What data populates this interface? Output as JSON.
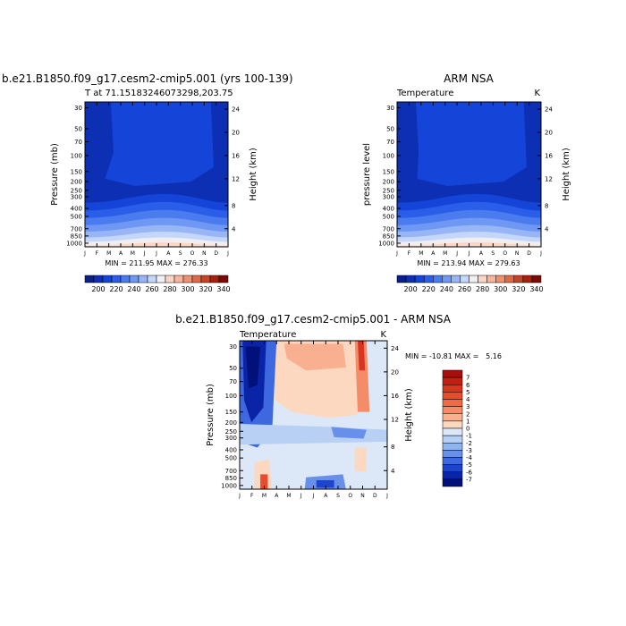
{
  "chart_data": [
    {
      "type": "heatmap",
      "title": "b.e21.B1850.f09_g17.cesm2-cmip5.001 (yrs 100-139)",
      "subtitle_left": "T at 71.15183246073298,203.75",
      "subtitle_right": "",
      "ylabel": "Pressure (mb)",
      "ylabel_right": "Height (km)",
      "stats": "MIN = 211.95 MAX = 276.33",
      "x": [
        "J",
        "F",
        "M",
        "A",
        "M",
        "J",
        "J",
        "A",
        "S",
        "O",
        "N",
        "D",
        "J"
      ],
      "y_pressure_ticks": [
        "30",
        "50",
        "70",
        "100",
        "150",
        "200",
        "250",
        "300",
        "400",
        "500",
        "700",
        "850",
        "1000"
      ],
      "y_height_ticks": [
        "24",
        "20",
        "16",
        "12",
        "8",
        "4"
      ],
      "colorbar_labels": [
        "200",
        "220",
        "240",
        "260",
        "280",
        "300",
        "320",
        "340"
      ],
      "colorbar_colors": [
        "#0a1e8c",
        "#0c2fb4",
        "#1444d8",
        "#2a5ee8",
        "#4a7cf0",
        "#6e98f4",
        "#98b6f6",
        "#c4d6fa",
        "#f0eef0",
        "#fbd6c4",
        "#f8b49c",
        "#f09070",
        "#e06a48",
        "#c84428",
        "#a8200e",
        "#7a0a04"
      ],
      "field": "temperature",
      "units_text": "",
      "min": 211.95,
      "max": 276.33
    },
    {
      "type": "heatmap",
      "title": "ARM NSA",
      "subtitle_left": "Temperature",
      "subtitle_right": "K",
      "ylabel": "pressure level",
      "ylabel_right": "Height (km)",
      "stats": "MIN = 213.94 MAX = 279.63",
      "x": [
        "J",
        "F",
        "M",
        "A",
        "M",
        "J",
        "J",
        "A",
        "S",
        "O",
        "N",
        "D",
        "J"
      ],
      "y_pressure_ticks": [
        "30",
        "50",
        "70",
        "100",
        "150",
        "200",
        "250",
        "300",
        "400",
        "500",
        "700",
        "850",
        "1000"
      ],
      "y_height_ticks": [
        "24",
        "20",
        "16",
        "12",
        "8",
        "4"
      ],
      "colorbar_labels": [
        "200",
        "220",
        "240",
        "260",
        "280",
        "300",
        "320",
        "340"
      ],
      "colorbar_colors": [
        "#0a1e8c",
        "#0c2fb4",
        "#1444d8",
        "#2a5ee8",
        "#4a7cf0",
        "#6e98f4",
        "#98b6f6",
        "#c4d6fa",
        "#f0eef0",
        "#fbd6c4",
        "#f8b49c",
        "#f09070",
        "#e06a48",
        "#c84428",
        "#a8200e",
        "#7a0a04"
      ],
      "field": "temperature",
      "min": 213.94,
      "max": 279.63
    },
    {
      "type": "heatmap",
      "title": "b.e21.B1850.f09_g17.cesm2-cmip5.001 - ARM NSA",
      "subtitle_left": "Temperature",
      "subtitle_right": "K",
      "ylabel": "Pressure (mb)",
      "ylabel_right": "Height (km)",
      "stats": "MIN = -10.81 MAX =   5.16",
      "x": [
        "J",
        "F",
        "M",
        "A",
        "M",
        "J",
        "J",
        "A",
        "S",
        "O",
        "N",
        "D",
        "J"
      ],
      "y_pressure_ticks": [
        "30",
        "50",
        "70",
        "100",
        "150",
        "200",
        "250",
        "300",
        "400",
        "500",
        "700",
        "850",
        "1000"
      ],
      "y_height_ticks": [
        "24",
        "20",
        "16",
        "12",
        "8",
        "4"
      ],
      "colorbar_labels": [
        "7",
        "6",
        "5",
        "4",
        "3",
        "2",
        "1",
        "0",
        "-1",
        "-2",
        "-3",
        "-4",
        "-5",
        "-6",
        "-7"
      ],
      "colorbar_colors": [
        "#a80e0a",
        "#c41e10",
        "#d83420",
        "#e84c30",
        "#f06a48",
        "#f48c68",
        "#f8b090",
        "#fcd8c0",
        "#dce8f8",
        "#b8d0f4",
        "#90b4f0",
        "#6890ea",
        "#3e68e0",
        "#1c44cc",
        "#0a24a8",
        "#02107a"
      ],
      "field": "difference",
      "min": -10.81,
      "max": 5.16
    }
  ]
}
